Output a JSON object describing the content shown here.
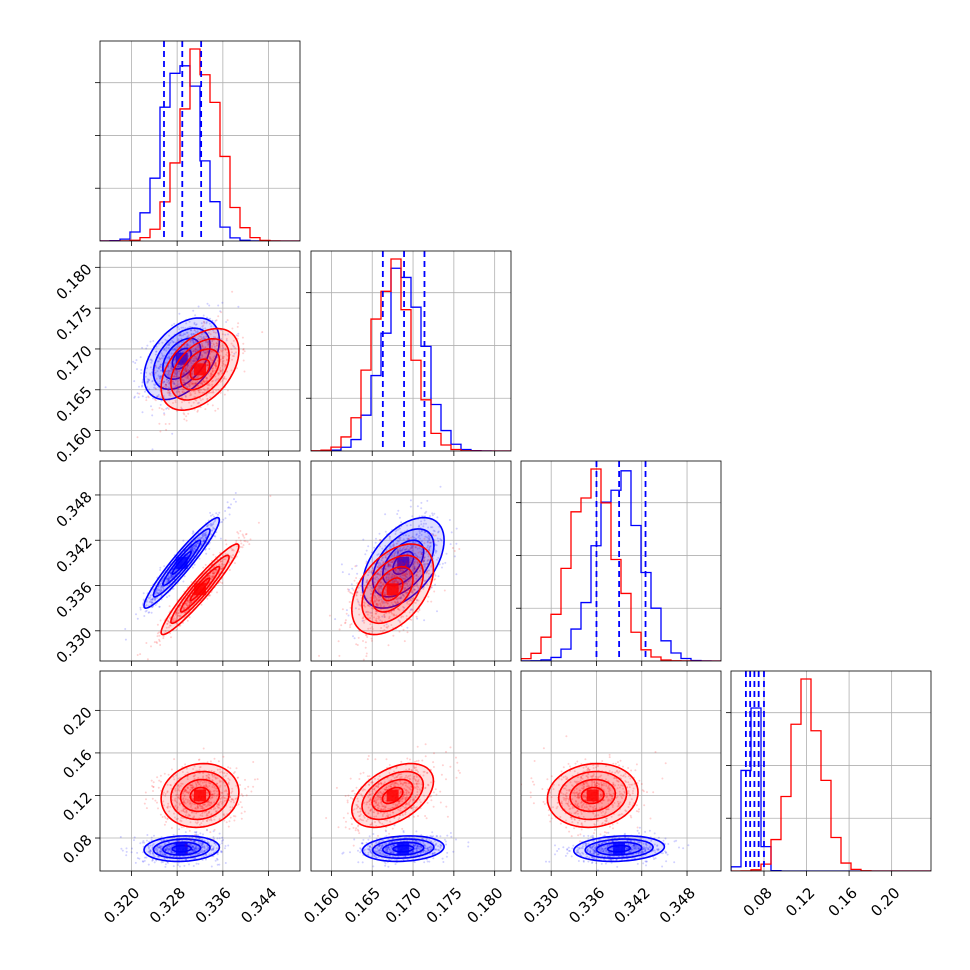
{
  "chart_data": {
    "type": "corner",
    "params": [
      {
        "range": [
          0.3145,
          0.3495
        ],
        "ticks": [
          0.32,
          0.328,
          0.336,
          0.344
        ],
        "ticklabels": [
          "0.320",
          "0.328",
          "0.336",
          "0.344"
        ]
      },
      {
        "range": [
          0.1575,
          0.182
        ],
        "ticks": [
          0.16,
          0.165,
          0.17,
          0.175,
          0.18
        ],
        "ticklabels": [
          "0.160",
          "0.165",
          "0.170",
          "0.175",
          "0.180"
        ]
      },
      {
        "range": [
          0.326,
          0.3525
        ],
        "ticks": [
          0.33,
          0.336,
          0.342,
          0.348
        ],
        "ticklabels": [
          "0.330",
          "0.336",
          "0.342",
          "0.348"
        ]
      },
      {
        "range": [
          0.049,
          0.237
        ],
        "ticks": [
          0.08,
          0.12,
          0.16,
          0.2
        ],
        "ticklabels": [
          "0.08",
          "0.12",
          "0.16",
          "0.20"
        ]
      }
    ],
    "series": [
      {
        "color": "#0000ff",
        "mean": [
          0.3288,
          0.1688,
          0.339,
          0.07
        ],
        "sd": [
          0.0033,
          0.0025,
          0.003,
          0.006
        ],
        "corr": [
          [
            0.45,
            0.95,
            0.1
          ],
          [
            0.5,
            0.15
          ],
          [
            0.15
          ]
        ]
      },
      {
        "color": "#ff0000",
        "mean": [
          0.332,
          0.1675,
          0.3355,
          0.12
        ],
        "sd": [
          0.0034,
          0.0025,
          0.003,
          0.015
        ],
        "corr": [
          [
            0.45,
            0.95,
            0.1
          ],
          [
            0.45,
            0.45
          ],
          [
            0.1
          ]
        ]
      }
    ],
    "quantile_lines": {
      "color": "#0000ff",
      "values": [
        [
          0.3257,
          0.3289,
          0.3322
        ],
        [
          0.1663,
          0.1689,
          0.1714
        ],
        [
          0.336,
          0.339,
          0.3425
        ],
        [
          0.063,
          0.067,
          0.071,
          0.075,
          0.08
        ]
      ]
    },
    "grid": true
  }
}
